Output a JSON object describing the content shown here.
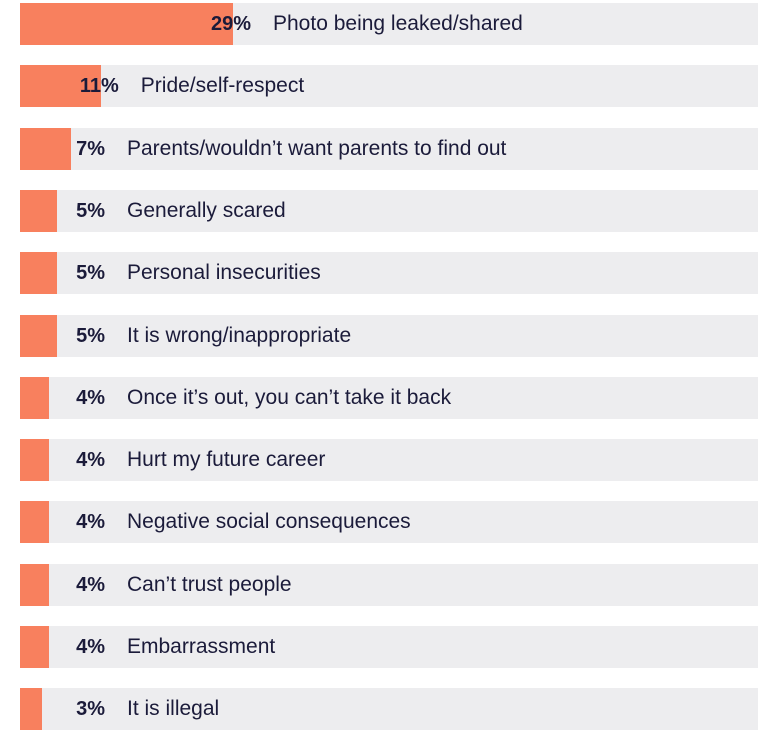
{
  "chart_data": {
    "type": "bar",
    "orientation": "horizontal",
    "title": "",
    "xlabel": "",
    "ylabel": "",
    "value_unit": "%",
    "colors": {
      "bar": "#f8805e",
      "track": "#ededef",
      "text": "#1b1b3a"
    },
    "categories": [
      "Photo being leaked/shared",
      "Pride/self-respect",
      "Parents/wouldn’t want parents to find out",
      "Generally scared",
      "Personal insecurities",
      "It is wrong/inappropriate",
      "Once it’s out, you can’t take it back",
      "Hurt my future career",
      "Negative social consequences",
      "Can’t trust people",
      "Embarrassment",
      "It is illegal"
    ],
    "values": [
      29,
      11,
      7,
      5,
      5,
      5,
      4,
      4,
      4,
      4,
      4,
      3
    ],
    "value_labels": [
      "29%",
      "11%",
      "7%",
      "5%",
      "5%",
      "5%",
      "4%",
      "4%",
      "4%",
      "4%",
      "4%",
      "3%"
    ]
  }
}
